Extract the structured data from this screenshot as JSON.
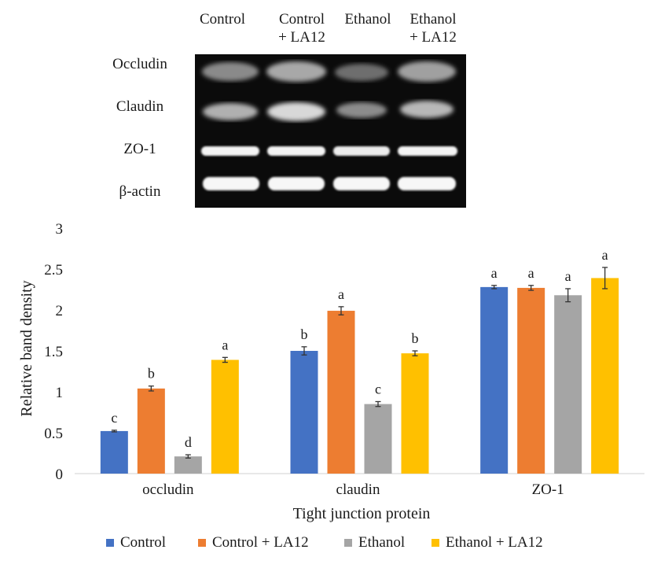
{
  "blot": {
    "lanes": [
      "Control",
      "Control\n+ LA12",
      "Ethanol",
      "Ethanol\n+ LA12"
    ],
    "rows": [
      "Occludin",
      "Claudin",
      "ZO-1",
      "β-actin"
    ]
  },
  "chart_data": {
    "type": "bar",
    "categories": [
      "occludin",
      "claudin",
      "ZO-1"
    ],
    "xlabel": "Tight junction protein",
    "ylabel": "Relative band density",
    "ylim": [
      0,
      3
    ],
    "yticks": [
      0,
      0.5,
      1,
      1.5,
      2,
      2.5,
      3
    ],
    "grid": false,
    "legend_position": "bottom",
    "series": [
      {
        "name": "Control",
        "color": "#4472C4",
        "values": [
          0.52,
          1.5,
          2.28
        ],
        "errors": [
          0.01,
          0.05,
          0.02
        ],
        "labels": [
          "c",
          "b",
          "a"
        ]
      },
      {
        "name": "Control + LA12",
        "color": "#ED7D31",
        "values": [
          1.04,
          1.99,
          2.27
        ],
        "errors": [
          0.03,
          0.05,
          0.03
        ],
        "labels": [
          "b",
          "a",
          "a"
        ]
      },
      {
        "name": "Ethanol",
        "color": "#A5A5A5",
        "values": [
          0.21,
          0.85,
          2.18
        ],
        "errors": [
          0.02,
          0.03,
          0.08
        ],
        "labels": [
          "d",
          "c",
          "a"
        ]
      },
      {
        "name": "Ethanol + LA12",
        "color": "#FFC000",
        "values": [
          1.39,
          1.47,
          2.39
        ],
        "errors": [
          0.03,
          0.03,
          0.13
        ],
        "labels": [
          "a",
          "b",
          "a"
        ]
      }
    ]
  }
}
